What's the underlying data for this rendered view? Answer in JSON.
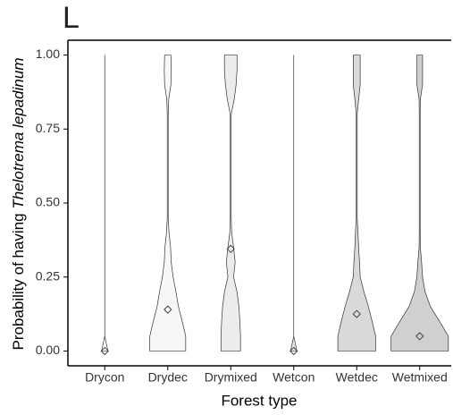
{
  "chart_data": {
    "type": "violin",
    "title": "L",
    "x_label": "Forest type",
    "y_label": {
      "text": "Probability of having",
      "species": "Thelotrema lepadinum"
    },
    "categories": [
      "Drycon",
      "Drydec",
      "Drymixed",
      "Wetcon",
      "Wetdec",
      "Wetmixed"
    ],
    "colors": [
      "#ffffff",
      "#f7f7f7",
      "#ececec",
      "#e6e6e6",
      "#d9d9d9",
      "#d0d0d0"
    ],
    "means": [
      0,
      0.14,
      0.345,
      0,
      0.125,
      0.05
    ],
    "density_y": [
      0,
      0.05,
      0.1,
      0.15,
      0.2,
      0.25,
      0.3,
      0.35,
      0.4,
      0.45,
      0.5,
      0.6,
      0.7,
      0.8,
      0.85,
      0.9,
      0.95,
      1
    ],
    "density": [
      [
        0.1,
        0,
        0,
        0,
        0,
        0,
        0,
        0,
        0,
        0,
        0,
        0,
        0,
        0,
        0,
        0,
        0,
        0
      ],
      [
        0.57,
        0.57,
        0.46,
        0.34,
        0.26,
        0.17,
        0.11,
        0.09,
        0.04,
        0.015,
        0.015,
        0.015,
        0.015,
        0.015,
        0.03,
        0.1,
        0.11,
        0.1
      ],
      [
        0.31,
        0.31,
        0.29,
        0.26,
        0.2,
        0.09,
        0.14,
        0.09,
        0.03,
        0.015,
        0.015,
        0.015,
        0.015,
        0.015,
        0.11,
        0.17,
        0.2,
        0.2
      ],
      [
        0.1,
        0,
        0,
        0,
        0,
        0,
        0,
        0,
        0,
        0,
        0,
        0,
        0,
        0,
        0,
        0,
        0,
        0
      ],
      [
        0.6,
        0.6,
        0.49,
        0.37,
        0.23,
        0.11,
        0.09,
        0.06,
        0.04,
        0.015,
        0.015,
        0.015,
        0.015,
        0.015,
        0.06,
        0.11,
        0.11,
        0.11
      ],
      [
        0.91,
        0.91,
        0.63,
        0.34,
        0.17,
        0.09,
        0.06,
        0.02,
        0.015,
        0.015,
        0.015,
        0.015,
        0.015,
        0.015,
        0.02,
        0.09,
        0.09,
        0.09
      ]
    ],
    "ylim": [
      -0.05,
      1.05
    ],
    "yticks": [
      {
        "value": 0,
        "label": "0.00"
      },
      {
        "value": 0.25,
        "label": "0.25"
      },
      {
        "value": 0.5,
        "label": "0.50"
      },
      {
        "value": 0.75,
        "label": "0.75"
      },
      {
        "value": 1,
        "label": "1.00"
      }
    ]
  }
}
